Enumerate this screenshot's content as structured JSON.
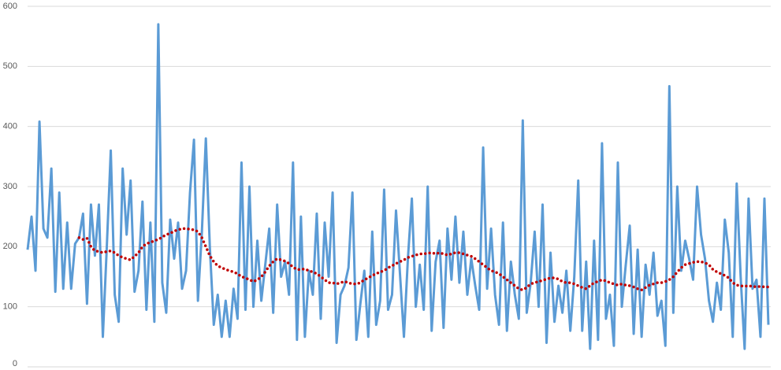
{
  "chart_data": {
    "type": "line",
    "ylim": [
      0,
      600
    ],
    "yticks": [
      0,
      100,
      200,
      300,
      400,
      500,
      600
    ],
    "grid": true,
    "series": [
      {
        "color": "#5b9bd5",
        "style": "solid",
        "values": [
          195,
          250,
          160,
          408,
          230,
          215,
          330,
          125,
          290,
          130,
          240,
          130,
          205,
          215,
          255,
          105,
          270,
          185,
          270,
          50,
          200,
          360,
          120,
          75,
          330,
          220,
          310,
          125,
          160,
          275,
          95,
          240,
          75,
          570,
          140,
          90,
          245,
          180,
          240,
          130,
          160,
          290,
          378,
          110,
          225,
          380,
          200,
          70,
          120,
          50,
          110,
          50,
          130,
          80,
          340,
          95,
          300,
          100,
          210,
          110,
          170,
          230,
          90,
          270,
          150,
          175,
          120,
          340,
          45,
          250,
          50,
          160,
          120,
          255,
          80,
          240,
          150,
          290,
          40,
          120,
          135,
          165,
          290,
          45,
          105,
          160,
          50,
          225,
          70,
          110,
          295,
          95,
          120,
          260,
          155,
          50,
          180,
          280,
          100,
          170,
          95,
          300,
          60,
          175,
          210,
          65,
          230,
          145,
          250,
          140,
          225,
          120,
          180,
          135,
          95,
          365,
          130,
          230,
          120,
          70,
          240,
          60,
          175,
          120,
          80,
          410,
          90,
          140,
          225,
          100,
          270,
          40,
          190,
          75,
          135,
          90,
          160,
          60,
          150,
          310,
          60,
          175,
          30,
          210,
          45,
          372,
          80,
          120,
          35,
          340,
          100,
          170,
          235,
          55,
          195,
          50,
          170,
          120,
          190,
          85,
          110,
          35,
          467,
          90,
          300,
          160,
          210,
          180,
          145,
          300,
          220,
          180,
          110,
          75,
          140,
          95,
          245,
          190,
          50,
          305,
          150,
          30,
          280,
          130,
          145,
          50,
          280,
          70
        ]
      },
      {
        "color": "#c00000",
        "style": "dotted",
        "values": [
          null,
          null,
          null,
          null,
          null,
          null,
          null,
          null,
          null,
          null,
          null,
          null,
          null,
          215,
          212,
          214,
          200,
          193,
          192,
          190,
          192,
          193,
          190,
          185,
          182,
          180,
          178,
          184,
          190,
          200,
          205,
          207,
          210,
          212,
          216,
          220,
          222,
          226,
          228,
          230,
          230,
          229,
          228,
          225,
          215,
          200,
          185,
          175,
          168,
          165,
          162,
          160,
          158,
          155,
          150,
          148,
          145,
          142,
          145,
          150,
          158,
          168,
          175,
          180,
          178,
          176,
          172,
          166,
          162,
          162,
          163,
          160,
          158,
          155,
          150,
          145,
          140,
          140,
          138,
          140,
          142,
          140,
          138,
          138,
          140,
          145,
          148,
          152,
          155,
          158,
          160,
          165,
          168,
          172,
          175,
          178,
          182,
          184,
          186,
          188,
          188,
          189,
          190,
          188,
          190,
          188,
          186,
          188,
          190,
          190,
          188,
          186,
          184,
          180,
          175,
          170,
          165,
          160,
          158,
          155,
          150,
          145,
          140,
          135,
          130,
          128,
          132,
          138,
          140,
          142,
          144,
          146,
          148,
          148,
          146,
          142,
          140,
          140,
          138,
          135,
          132,
          130,
          135,
          140,
          142,
          145,
          143,
          140,
          138,
          136,
          138,
          136,
          135,
          133,
          130,
          128,
          132,
          136,
          138,
          140,
          140,
          142,
          145,
          150,
          158,
          165,
          170,
          172,
          174,
          175,
          175,
          173,
          170,
          162,
          158,
          155,
          152,
          148,
          140,
          136,
          135,
          134,
          135,
          134,
          133,
          134,
          133,
          133
        ]
      }
    ]
  }
}
